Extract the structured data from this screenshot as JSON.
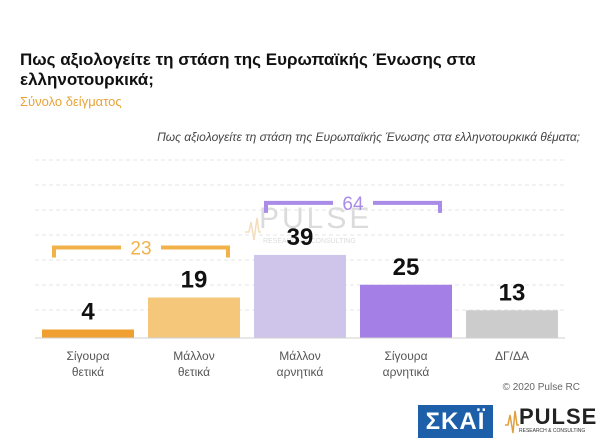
{
  "title": "Πως αξιολογείτε τη στάση της Ευρωπαϊκής Ένωσης στα ελληνοτουρκικά;",
  "subtitle": "Σύνολο δείγματος",
  "question": "Πως αξιολογείτε τη στάση της Ευρωπαϊκής Ένωσης στα ελληνοτουρκικά θέματα;",
  "copyright": "© 2020 Pulse RC",
  "logos": {
    "skai": "ΣΚΑΪ",
    "pulse": "PULSE",
    "pulse_sub": "RESEARCH & CONSULTING"
  },
  "chart_data": {
    "type": "bar",
    "categories": [
      [
        "Σίγουρα",
        "θετικά"
      ],
      [
        "Μάλλον",
        "θετικά"
      ],
      [
        "Μάλλον",
        "αρνητικά"
      ],
      [
        "Σίγουρα",
        "αρνητικά"
      ],
      [
        "ΔΓ/ΔΑ"
      ]
    ],
    "values": [
      4,
      19,
      39,
      25,
      13
    ],
    "colors": [
      "#f0a030",
      "#f5c77a",
      "#cfc5ea",
      "#a47fe6",
      "#cccccc"
    ],
    "ylim": [
      0,
      45
    ],
    "grid": true,
    "brackets": [
      {
        "from": 0,
        "to": 1,
        "label": "23",
        "color": "#f2b24a"
      },
      {
        "from": 2,
        "to": 3,
        "label": "64",
        "color": "#a98be8"
      }
    ]
  }
}
